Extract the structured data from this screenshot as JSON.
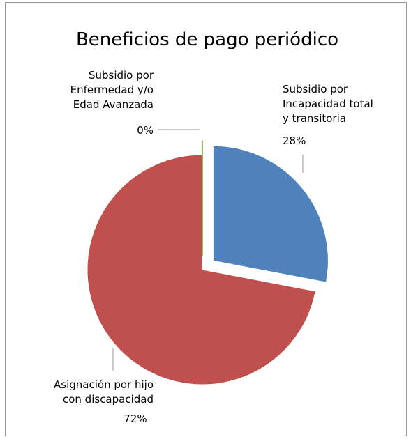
{
  "chart_data": {
    "type": "pie",
    "title": "Beneficios de pago periódico",
    "categories": [
      "Subsidio por\nIncapacidad total\ny transitoria",
      "Asignación por hijo\ncon discapacidad",
      "Subsidio por\nEnfermedad y/o\nEdad Avanzada"
    ],
    "values": [
      28,
      72,
      0
    ],
    "value_labels": [
      "28%",
      "72%",
      "0%"
    ],
    "colors": [
      "#4f81bd",
      "#c0504d",
      "#9bbb59"
    ],
    "exploded": [
      true,
      false,
      true
    ]
  }
}
